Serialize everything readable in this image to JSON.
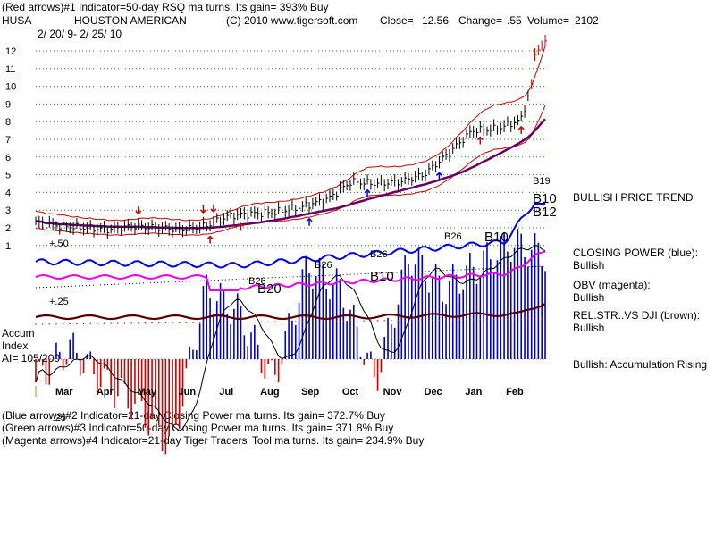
{
  "header": {
    "line1": "(Red arrows)#1 Indicator=50-day RSQ ma turns. Its gain= 393% Buy",
    "symbol": "HUSA",
    "company": "HOUSTON AMERICAN",
    "copyright": "(C) 2010 www.tigersoft.com",
    "close_label": "Close=",
    "close_value": "12.56",
    "change_label": "Change=",
    "change_value": ".55",
    "volume_label": "Volume=",
    "volume_value": "2102",
    "date_range": "2/ 20/ 9- 2/ 25/ 10"
  },
  "labels": {
    "bullish_trend": "BULLISH PRICE TREND",
    "closing_power": "CLOSING POWER (blue):",
    "closing_power_state": "Bullish",
    "obv": "OBV (magenta):",
    "obv_state": "Bullish",
    "relstr": "REL.STR..VS DJI (brown):",
    "relstr_state": "Bullish",
    "accum_rising": "Bullish: Accumulation Rising",
    "accum_title1": "Accum",
    "accum_title2": "Index",
    "accum_ai": "AI= 105/200"
  },
  "footer": {
    "line1": "(Blue arrows)#2 Indicator=21-day Closing Power ma turns. Its gain= 372.7% Buy",
    "line2": "(Green arrows)#3 Indicator=50-day Closing Power ma turns. Its gain= 371.8% Buy",
    "line3": "(Magenta arrows)#4 Indicator=21-day Tiger Traders' Tool ma turns. Its gain= 234.9% Buy"
  },
  "colors": {
    "price": "#000000",
    "band": "#cc0000",
    "ma": "#660066",
    "closing_power": "#0000ee",
    "obv": "#ee00ee",
    "relstr": "#550000",
    "accum_pos": "#0000cc",
    "accum_neg": "#cc0000"
  },
  "chart_data": {
    "type": "line",
    "title": "HUSA HOUSTON AMERICAN",
    "x_tick_labels": [
      "Mar",
      "Apr",
      "May",
      "Jun",
      "Jul",
      "Aug",
      "Sep",
      "Oct",
      "Nov",
      "Dec",
      "Jan",
      "Feb"
    ],
    "price_axis": {
      "ticks": [
        1,
        2,
        3,
        4,
        5,
        6,
        7,
        8,
        9,
        10,
        11,
        12
      ],
      "ylim": [
        0.5,
        12.6
      ]
    },
    "accum_axis": {
      "ticks": [
        "+.50",
        "+.25",
        "-.25"
      ],
      "ylim": [
        -0.4,
        0.6
      ]
    },
    "series": [
      {
        "name": "Price (close)",
        "unit": "USD",
        "values": [
          2.3,
          2.1,
          2.0,
          1.9,
          2.1,
          2.0,
          1.9,
          2.1,
          2.7,
          2.8,
          2.9,
          3.2,
          3.6,
          4.6,
          4.5,
          4.6,
          5.0,
          6.2,
          7.5,
          7.6,
          8.1,
          12.56
        ]
      },
      {
        "name": "Accumulation Index",
        "values": [
          -0.1,
          0.05,
          -0.1,
          -0.2,
          -0.38,
          0.3,
          0.2,
          -0.1,
          0.4,
          0.3,
          -0.1,
          0.45,
          0.3,
          0.4,
          0.5,
          0.45
        ]
      }
    ],
    "signals": [
      "B26",
      "B20",
      "B26",
      "B26",
      "B10",
      "B26",
      "B10",
      "B19",
      "B10",
      "B12"
    ]
  }
}
